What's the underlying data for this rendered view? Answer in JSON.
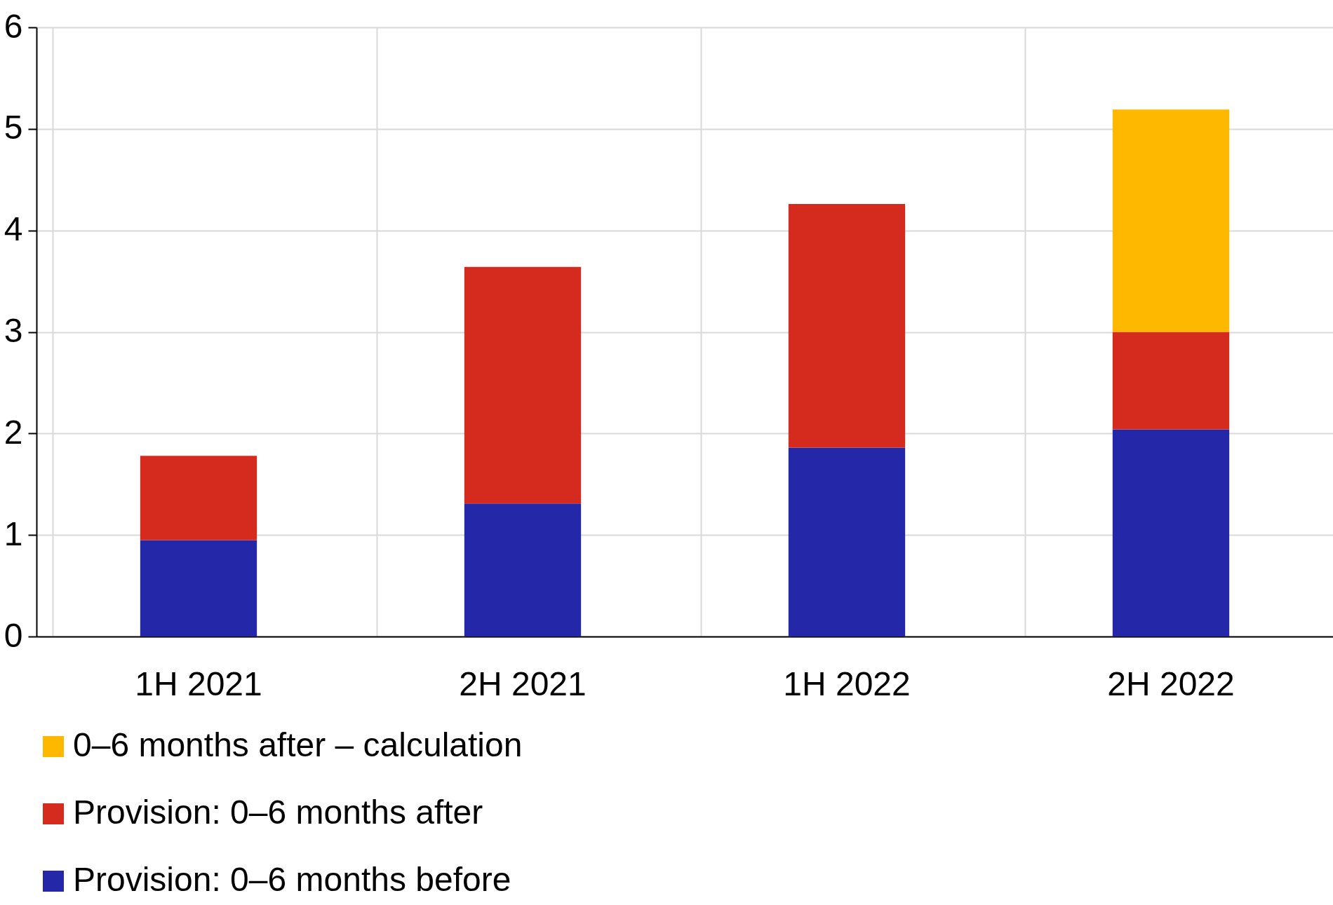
{
  "chart_data": {
    "type": "bar",
    "stacked": true,
    "categories": [
      "1H 2021",
      "2H 2021",
      "1H 2022",
      "2H 2022"
    ],
    "series": [
      {
        "name": "Provision: 0–6 months before",
        "color": "#2327a8",
        "values": [
          0.95,
          1.31,
          1.86,
          2.04
        ]
      },
      {
        "name": "Provision: 0–6 months after",
        "color": "#d52b1e",
        "values": [
          0.83,
          2.33,
          2.4,
          0.96
        ]
      },
      {
        "name": "0–6 months after – calculation",
        "color": "#ffb800",
        "values": [
          null,
          null,
          null,
          2.19
        ]
      }
    ],
    "ylim": [
      0,
      6
    ],
    "yticks": [
      0,
      1,
      2,
      3,
      4,
      5,
      6
    ],
    "grid": true,
    "legend": "bottom left"
  }
}
